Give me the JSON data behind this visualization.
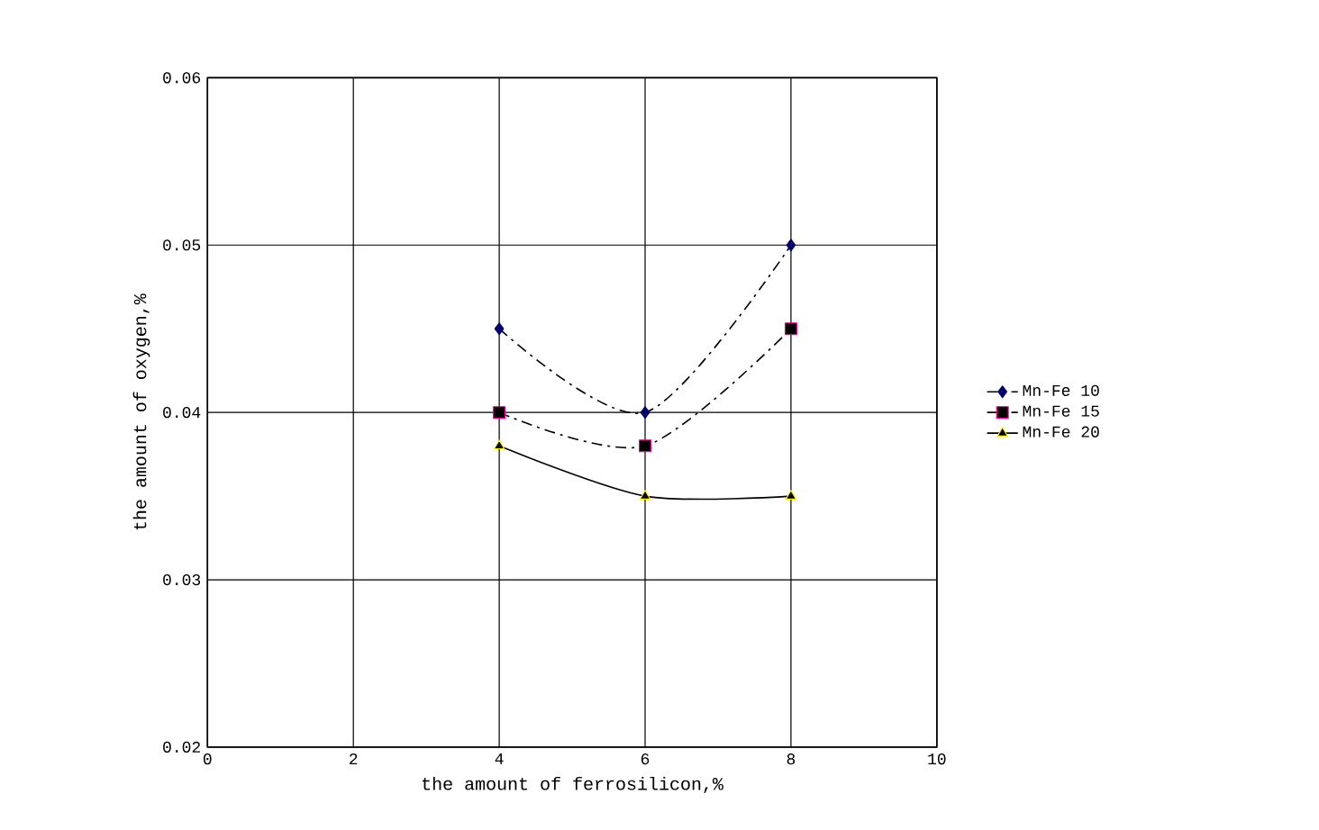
{
  "chart_data": {
    "type": "line",
    "xlabel": "the amount of ferrosilicon,%",
    "ylabel": "the amount of oxygen,%",
    "x": [
      4,
      6,
      8
    ],
    "series": [
      {
        "name": "Mn-Fe 10",
        "color": "#000000",
        "values": [
          0.045,
          0.04,
          0.05
        ],
        "marker": "diamond",
        "line_style": "dashed"
      },
      {
        "name": "Mn-Fe 15",
        "color": "#000000",
        "values": [
          0.04,
          0.038,
          0.045
        ],
        "marker": "square",
        "line_style": "dashed"
      },
      {
        "name": "Mn-Fe 20",
        "color": "#000000",
        "values": [
          0.038,
          0.035,
          0.035
        ],
        "marker": "triangle",
        "line_style": "solid"
      }
    ],
    "xlim": [
      0,
      10
    ],
    "xticks": [
      0,
      2,
      4,
      6,
      8,
      10
    ],
    "ylim": [
      0.02,
      0.06
    ],
    "yticks": [
      0.02,
      0.03,
      0.04,
      0.05,
      0.06
    ],
    "grid": true,
    "legend": "right"
  }
}
